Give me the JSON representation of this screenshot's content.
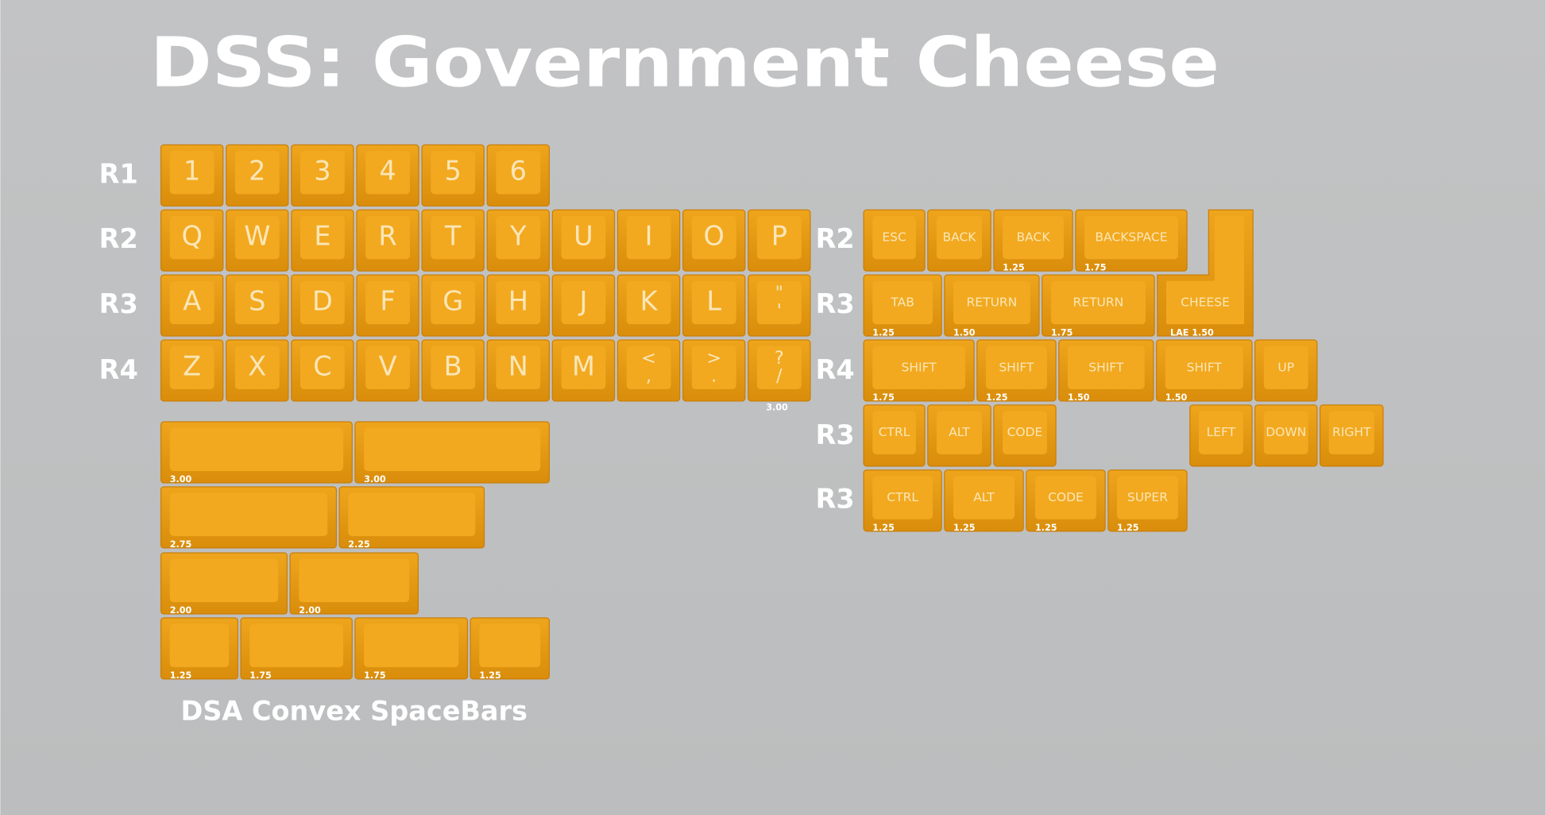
{
  "title": "DSS: Government Cheese",
  "caption": "DSA Convex SpaceBars",
  "row_labels": {
    "left": [
      "R1",
      "R2",
      "R3",
      "R4"
    ],
    "right": [
      "R2",
      "R3",
      "R4",
      "R3",
      "R3"
    ]
  },
  "rows": [
    {
      "keys": [
        {
          "legend": "1"
        },
        {
          "legend": "2"
        },
        {
          "legend": "3"
        },
        {
          "legend": "4"
        },
        {
          "legend": "5"
        },
        {
          "legend": "6"
        }
      ]
    },
    {
      "keys": [
        {
          "legend": "Q"
        },
        {
          "legend": "W"
        },
        {
          "legend": "E"
        },
        {
          "legend": "R"
        },
        {
          "legend": "T"
        },
        {
          "legend": "Y"
        },
        {
          "legend": "U"
        },
        {
          "legend": "I"
        },
        {
          "legend": "O"
        },
        {
          "legend": "P"
        }
      ]
    },
    {
      "keys": [
        {
          "legend": "A"
        },
        {
          "legend": "S"
        },
        {
          "legend": "D"
        },
        {
          "legend": "F"
        },
        {
          "legend": "G"
        },
        {
          "legend": "H"
        },
        {
          "legend": "J"
        },
        {
          "legend": "K"
        },
        {
          "legend": "L"
        },
        {
          "legend": [
            "\"",
            "'"
          ]
        }
      ]
    },
    {
      "keys": [
        {
          "legend": "Z"
        },
        {
          "legend": "X"
        },
        {
          "legend": "C"
        },
        {
          "legend": "V"
        },
        {
          "legend": "B"
        },
        {
          "legend": "N"
        },
        {
          "legend": "M"
        },
        {
          "legend": [
            "<",
            ","
          ]
        },
        {
          "legend": [
            ">",
            "."
          ]
        },
        {
          "legend": [
            "?",
            "/"
          ]
        }
      ],
      "size_note": "3.00"
    },
    {
      "keys": [
        {
          "size": "3.00"
        },
        {
          "size": "3.00"
        }
      ]
    },
    {
      "keys": [
        {
          "size": "2.75"
        },
        {
          "size": "2.25"
        }
      ]
    },
    {
      "keys": [
        {
          "size": "2.00"
        },
        {
          "size": "2.00"
        }
      ]
    },
    {
      "keys": [
        {
          "size": "1.25"
        },
        {
          "size": "1.75"
        },
        {
          "size": "1.75"
        },
        {
          "size": "1.25"
        }
      ]
    },
    {
      "keys": [
        {
          "legend": "ESC"
        },
        {
          "legend": "BACK"
        },
        {
          "legend": "BACK",
          "size": "1.25"
        },
        {
          "legend": "BACKSPACE",
          "size": "1.75"
        }
      ]
    },
    {
      "keys": [
        {
          "legend": "TAB",
          "size": "1.25"
        },
        {
          "legend": "RETURN",
          "size": "1.50"
        },
        {
          "legend": "RETURN",
          "size": "1.75"
        },
        {
          "legend": "CHEESE",
          "size": "LAE 1.50"
        }
      ]
    },
    {
      "keys": [
        {
          "legend": "SHIFT",
          "size": "1.75"
        },
        {
          "legend": "SHIFT",
          "size": "1.25"
        },
        {
          "legend": "SHIFT",
          "size": "1.50"
        },
        {
          "legend": "SHIFT",
          "size": "1.50"
        },
        {
          "legend": "UP"
        }
      ]
    },
    {
      "keys": [
        {
          "legend": "CTRL"
        },
        {
          "legend": "ALT"
        },
        {
          "legend": "CODE"
        },
        {
          "legend": "LEFT"
        },
        {
          "legend": "DOWN"
        },
        {
          "legend": "RIGHT"
        }
      ]
    },
    {
      "keys": [
        {
          "legend": "CTRL",
          "size": "1.25"
        },
        {
          "legend": "ALT",
          "size": "1.25"
        },
        {
          "legend": "CODE",
          "size": "1.25"
        },
        {
          "legend": "SUPER",
          "size": "1.25"
        }
      ]
    }
  ]
}
